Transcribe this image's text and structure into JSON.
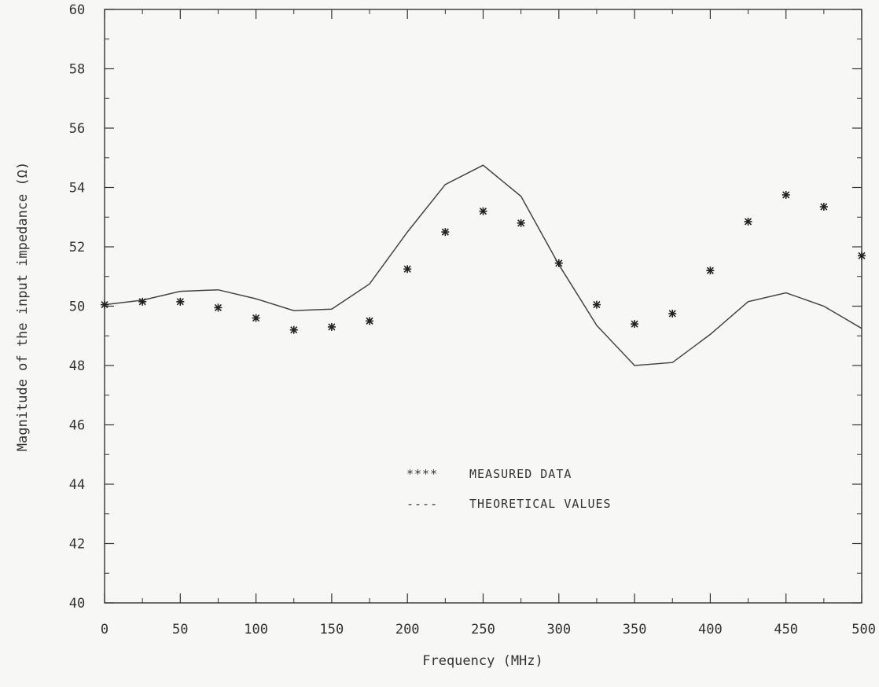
{
  "colors": {
    "background": "#f7f7f5",
    "ink": "#333333",
    "theory_line": "#444444"
  },
  "chart_data": {
    "type": "line",
    "xlabel": "Frequency (MHz)",
    "ylabel": "Magnitude of the input impedance (Ω)",
    "xlim": [
      0,
      500
    ],
    "ylim": [
      40,
      60
    ],
    "xticks": [
      0,
      50,
      100,
      150,
      200,
      250,
      300,
      350,
      400,
      450,
      500
    ],
    "xtick_labels": [
      "0",
      "50",
      "100",
      "150",
      "200",
      "250",
      "300",
      "350",
      "400",
      "450",
      "500"
    ],
    "yticks": [
      40,
      42,
      44,
      46,
      48,
      50,
      52,
      54,
      56,
      58,
      60
    ],
    "ytick_labels": [
      "40",
      "42",
      "44",
      "46",
      "48",
      "50",
      "52",
      "54",
      "56",
      "58",
      "60"
    ],
    "grid": false,
    "legend_position": "center",
    "series": [
      {
        "name": "MEASURED DATA",
        "legend_symbol": "****",
        "style": "markers",
        "x": [
          0,
          25,
          50,
          75,
          100,
          125,
          150,
          175,
          200,
          225,
          250,
          275,
          300,
          325,
          350,
          375,
          400,
          425,
          450,
          475,
          500
        ],
        "y": [
          50.05,
          50.15,
          50.15,
          49.95,
          49.6,
          49.2,
          49.3,
          49.5,
          51.25,
          52.5,
          53.2,
          52.8,
          51.45,
          50.05,
          49.4,
          49.75,
          51.2,
          52.85,
          53.75,
          53.35,
          51.7
        ]
      },
      {
        "name": "THEORETICAL VALUES",
        "legend_symbol": "----",
        "style": "line",
        "x": [
          0,
          25,
          50,
          75,
          100,
          125,
          150,
          175,
          200,
          225,
          250,
          275,
          300,
          325,
          350,
          375,
          400,
          425,
          450,
          475,
          500
        ],
        "y": [
          50.05,
          50.2,
          50.5,
          50.55,
          50.25,
          49.85,
          49.9,
          50.75,
          52.5,
          54.1,
          54.75,
          53.7,
          51.4,
          49.35,
          48.0,
          48.1,
          49.05,
          50.15,
          50.45,
          50.0,
          49.25
        ]
      }
    ]
  }
}
